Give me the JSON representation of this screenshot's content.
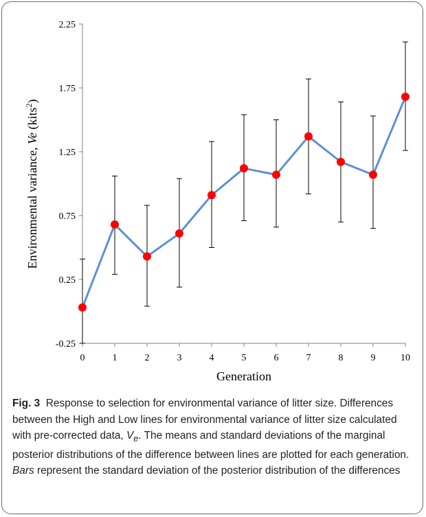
{
  "chart_data": {
    "type": "line",
    "ylabel_parts": [
      "Environmental variance,  ",
      "Ve",
      " (kits",
      "2",
      ")"
    ],
    "xlabel": "Generation",
    "x": [
      0,
      1,
      2,
      3,
      4,
      5,
      6,
      7,
      8,
      9,
      10
    ],
    "series": [
      {
        "values": [
          0.03,
          0.68,
          0.43,
          0.61,
          0.91,
          1.12,
          1.07,
          1.37,
          1.17,
          1.07,
          1.68
        ],
        "error_low": [
          -0.25,
          0.29,
          0.04,
          0.19,
          0.5,
          0.71,
          0.66,
          0.92,
          0.7,
          0.65,
          1.26
        ],
        "error_high": [
          0.41,
          1.06,
          0.83,
          1.04,
          1.33,
          1.54,
          1.5,
          1.82,
          1.64,
          1.53,
          2.11
        ]
      }
    ],
    "yticks": [
      "2.25",
      "1.75",
      "1.25",
      "0.75",
      "0.25",
      "-0.25"
    ],
    "ytick_values": [
      2.25,
      1.75,
      1.25,
      0.75,
      0.25,
      -0.25
    ],
    "xticks": [
      "0",
      "1",
      "2",
      "3",
      "4",
      "5",
      "6",
      "7",
      "8",
      "9",
      "10"
    ],
    "ylim": [
      -0.25,
      2.25
    ],
    "xlim": [
      0,
      10
    ],
    "grid": false,
    "colors": {
      "line": "#5b8fd6",
      "marker": "#ff0000",
      "error": "#000000",
      "axis": "#808080"
    }
  },
  "caption": {
    "fig_label": "Fig. 3",
    "title": "Response to selection for environmental variance of litter size.",
    "text_before_ve": "Differences between the High and Low lines for environmental variance of litter size calculated with pre-corrected data,",
    "ve_symbol": "V",
    "ve_subscript": "e",
    "text_after_ve": ". The means and standard deviations of the marginal posterior distributions of the difference between lines are plotted for each generation.",
    "bars_word": "Bars",
    "text_end": "represent the standard deviation of the posterior distribution of the differences"
  }
}
